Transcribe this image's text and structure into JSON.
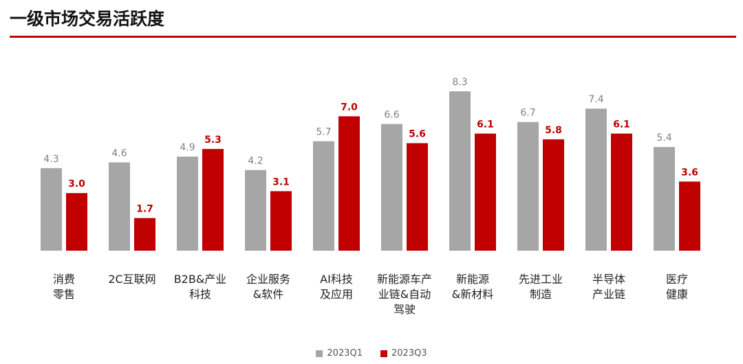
{
  "page_title": "一级市场交易活跃度",
  "colors": {
    "q1": "#a6a6a6",
    "q3": "#c00000",
    "accent": "#c00000"
  },
  "chart_data": {
    "type": "bar",
    "categories": [
      "消费\n零售",
      "2C互联网",
      "B2B&产业\n科技",
      "企业服务\n&软件",
      "AI科技\n及应用",
      "新能源车产\n业链&自动\n驾驶",
      "新能源\n&新材料",
      "先进工业\n制造",
      "半导体\n产业链",
      "医疗\n健康"
    ],
    "series": [
      {
        "name": "2023Q1",
        "values": [
          4.3,
          4.6,
          4.9,
          4.2,
          5.7,
          6.6,
          8.3,
          6.7,
          7.4,
          5.4
        ]
      },
      {
        "name": "2023Q3",
        "values": [
          3.0,
          1.7,
          5.3,
          3.1,
          7.0,
          5.6,
          6.1,
          5.8,
          6.1,
          3.6
        ]
      }
    ],
    "value_labels": {
      "2023Q1": [
        "4.3",
        "4.6",
        "4.9",
        "4.2",
        "5.7",
        "6.6",
        "8.3",
        "6.7",
        "7.4",
        "5.4"
      ],
      "2023Q3": [
        "3.0",
        "1.7",
        "5.3",
        "3.1",
        "7.0",
        "5.6",
        "6.1",
        "5.8",
        "6.1",
        "3.6"
      ]
    },
    "title": "",
    "xlabel": "",
    "ylabel": "",
    "ylim": [
      0,
      8.3
    ],
    "grid": false,
    "legend_position": "bottom-center"
  }
}
